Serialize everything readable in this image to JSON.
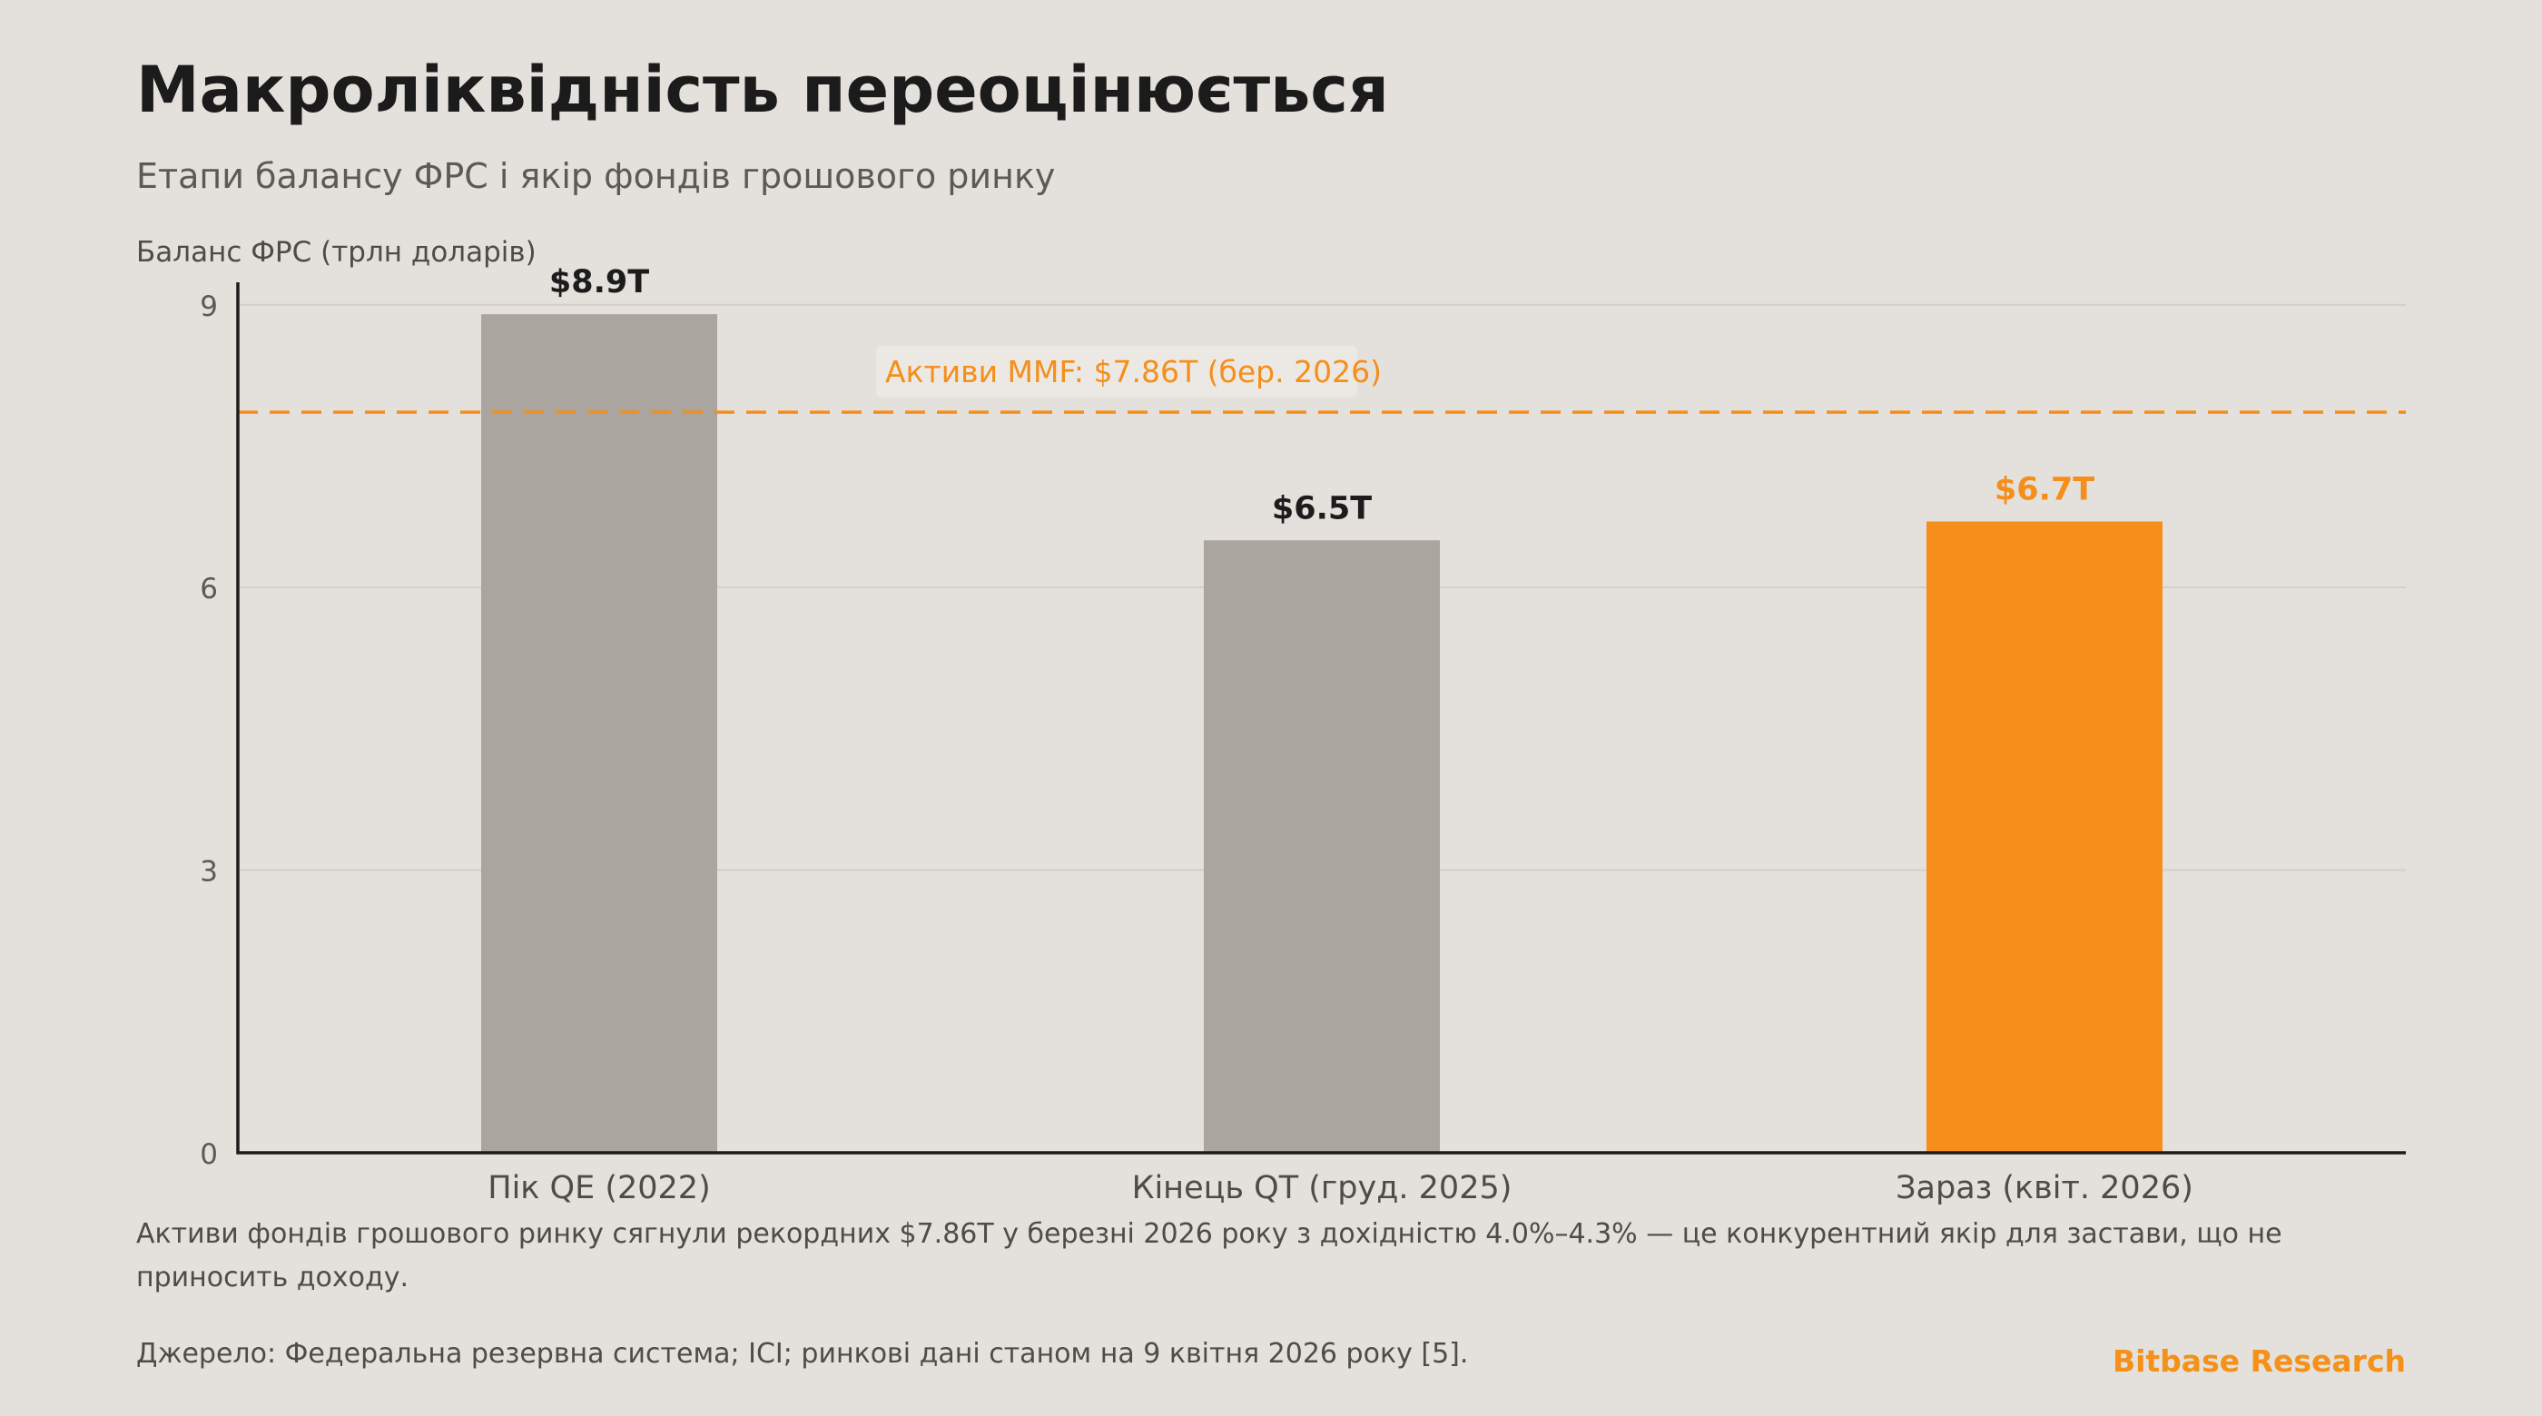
{
  "header": {
    "title": "Макроліквідність переоцінюється",
    "subtitle": "Етапи балансу ФРС і якір фондів грошового ринку"
  },
  "chart_data": {
    "type": "bar",
    "ylabel": "Баланс ФРС (трлн доларів)",
    "xlabel": "",
    "categories": [
      "Пік QE (2022)",
      "Кінець QT (груд. 2025)",
      "Зараз (квіт. 2026)"
    ],
    "values": [
      8.9,
      6.5,
      6.7
    ],
    "value_labels": [
      "$8.9T",
      "$6.5T",
      "$6.7T"
    ],
    "bar_colors": [
      "#aaa69f",
      "#aaa69f",
      "#f58e1a"
    ],
    "value_label_colors": [
      "#1c1c1c",
      "#1c1c1c",
      "#f58e1a"
    ],
    "ylim": [
      0,
      9.2
    ],
    "yticks": [
      0,
      3,
      6,
      9
    ],
    "grid": true,
    "reference_line": {
      "value": 7.86,
      "label": "Активи MMF: $7.86T (бер. 2026)",
      "color": "#f58e1a",
      "style": "dashed"
    }
  },
  "footer": {
    "caption": "Активи фондів грошового ринку сягнули рекордних $7.86T у березні 2026 року з дохідністю 4.0%–4.3% — це конкурентний якір для застави, що не приносить доходу.",
    "source": "Джерело: Федеральна резервна система; ICI; ринкові дані станом на 9 квітня 2026 року [5].",
    "brand": "Bitbase Research"
  },
  "colors": {
    "background": "#e4e0db",
    "accent": "#f58e1a",
    "bar_neutral": "#aaa69f",
    "grid": "#d2cec8",
    "axis": "#1c1c1c"
  }
}
